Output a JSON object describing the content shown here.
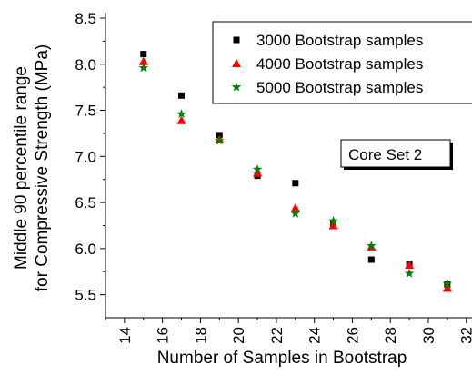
{
  "chart_data": {
    "type": "scatter",
    "xlabel": "Number of Samples in Bootstrap",
    "ylabel_line1": "Middle 90 percentile range",
    "ylabel_line2": "for Compressive Strength (MPa)",
    "xlim": [
      13,
      32.3
    ],
    "ylim": [
      5.25,
      8.5
    ],
    "xticks": [
      14,
      16,
      18,
      20,
      22,
      24,
      26,
      28,
      30,
      32
    ],
    "xtick_labels": [
      "14",
      "16",
      "18",
      "20",
      "22",
      "24",
      "26",
      "28",
      "30",
      "32"
    ],
    "yticks": [
      5.5,
      6.0,
      6.5,
      7.0,
      7.5,
      8.0,
      8.5
    ],
    "ytick_labels": [
      "5.5",
      "6.0",
      "6.5",
      "7.0",
      "7.5",
      "8.0",
      "8.5"
    ],
    "annotation": "Core Set 2",
    "legend_position": "top-right",
    "grid": false,
    "series": [
      {
        "name": "3000 Bootstrap samples",
        "marker": "square",
        "color": "#000000",
        "x": [
          15,
          17,
          19,
          21,
          23,
          25,
          27,
          29,
          31
        ],
        "y": [
          8.11,
          7.66,
          7.23,
          6.79,
          6.71,
          6.27,
          5.88,
          5.83,
          5.61
        ]
      },
      {
        "name": "4000 Bootstrap samples",
        "marker": "triangle",
        "color": "#ff0000",
        "x": [
          15,
          17,
          19,
          21,
          23,
          25,
          27,
          29,
          31
        ],
        "y": [
          8.03,
          7.39,
          7.18,
          6.82,
          6.44,
          6.25,
          6.02,
          5.82,
          5.57
        ]
      },
      {
        "name": "5000 Bootstrap samples",
        "marker": "star",
        "color": "#008000",
        "x": [
          15,
          17,
          19,
          21,
          23,
          25,
          27,
          29,
          31
        ],
        "y": [
          7.96,
          7.46,
          7.17,
          6.86,
          6.38,
          6.3,
          6.03,
          5.73,
          5.62
        ]
      }
    ]
  }
}
